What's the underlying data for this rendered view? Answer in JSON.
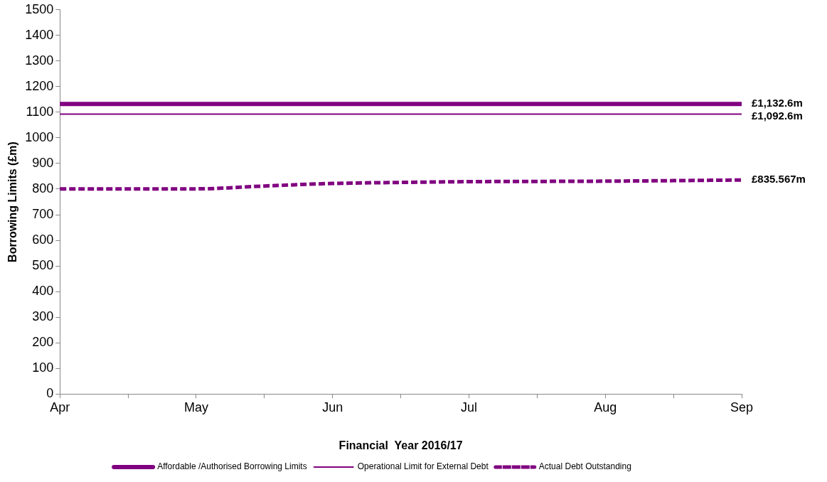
{
  "chart_data": {
    "type": "line",
    "xlabel": "Financial  Year 2016/17",
    "ylabel": "Borrowing Limits (£m)",
    "categories": [
      "Apr",
      null,
      "May",
      null,
      "Jun",
      null,
      "Jul",
      null,
      "Aug",
      null,
      "Sep"
    ],
    "series": [
      {
        "name": "Affordable /Authorised Borrowing Limits",
        "color": "#800080",
        "line_style": "solid",
        "values": [
          1132.6,
          1132.6,
          1132.6,
          1132.6,
          1132.6,
          1132.6,
          1132.6,
          1132.6,
          1132.6,
          1132.6,
          1132.6
        ]
      },
      {
        "name": "Operational Limit for External Debt",
        "color": "#800080",
        "line_style": "solid",
        "values": [
          1092.6,
          1092.6,
          1092.6,
          1092.6,
          1092.6,
          1092.6,
          1092.6,
          1092.6,
          1092.6,
          1092.6,
          1092.6
        ]
      },
      {
        "name": "Actual Debt Outstanding",
        "color": "#800080",
        "line_style": "dashed",
        "values": [
          801,
          801,
          801,
          812,
          822,
          826,
          829,
          830,
          831,
          833,
          835.567
        ]
      }
    ],
    "ylim": [
      0,
      1500
    ],
    "yticks": [
      0,
      100,
      200,
      300,
      400,
      500,
      600,
      700,
      800,
      900,
      1000,
      1100,
      1200,
      1300,
      1400,
      1500
    ],
    "grid": false,
    "legend": "bottom",
    "marker": "none",
    "annotations": [
      {
        "text": "£1,132.6m",
        "x": "Sep",
        "y": 1132.6
      },
      {
        "text": "£1,092.6m",
        "x": "Sep",
        "y": 1092.6
      },
      {
        "text": "£835.567m",
        "x": "Sep",
        "y": 835.567
      }
    ]
  }
}
